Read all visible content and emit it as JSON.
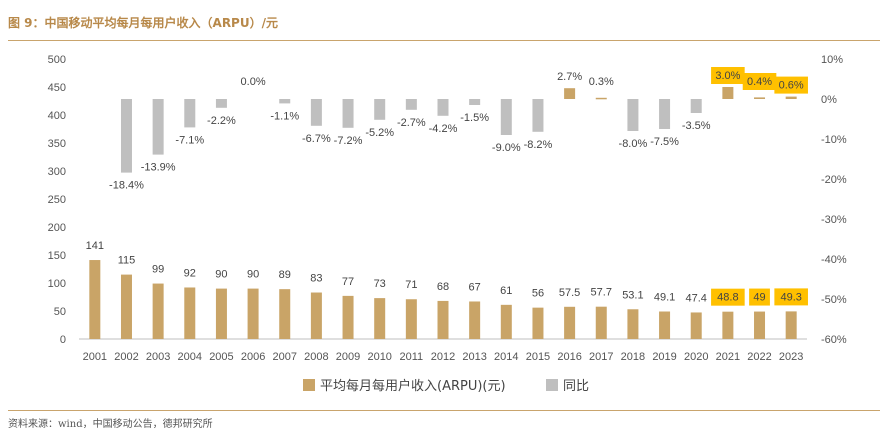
{
  "header": {
    "title": "图 9：中国移动平均每月每用户收入（ARPU）/元"
  },
  "footer": {
    "source": "资料来源：wind，中国移动公告，德邦研究所"
  },
  "colors": {
    "bar": "#c9a467",
    "yoy": "#bfbfbf",
    "highlight": "#ffc000",
    "axis": "#bfbfbf"
  },
  "chart_data": {
    "type": "bar",
    "categories": [
      "2001",
      "2002",
      "2003",
      "2004",
      "2005",
      "2006",
      "2007",
      "2008",
      "2009",
      "2010",
      "2011",
      "2012",
      "2013",
      "2014",
      "2015",
      "2016",
      "2017",
      "2018",
      "2019",
      "2020",
      "2021",
      "2022",
      "2023"
    ],
    "series": [
      {
        "name": "平均每月每用户收入(ARPU)(元)",
        "axis": "left",
        "values": [
          141,
          115,
          99,
          92,
          90,
          90,
          89,
          83,
          77,
          73,
          71,
          68,
          67,
          61,
          56,
          57.5,
          57.7,
          53.1,
          49.1,
          47.4,
          48.8,
          49,
          49.3
        ],
        "labels": [
          "141",
          "115",
          "99",
          "92",
          "90",
          "90",
          "89",
          "83",
          "77",
          "73",
          "71",
          "68",
          "67",
          "61",
          "56",
          "57.5",
          "57.7",
          "53.1",
          "49.1",
          "47.4",
          "48.8",
          "49",
          "49.3"
        ]
      },
      {
        "name": "同比",
        "axis": "right",
        "values": [
          null,
          -18.4,
          -13.9,
          -7.1,
          -2.2,
          0.0,
          -1.1,
          -6.7,
          -7.2,
          -5.2,
          -2.7,
          -4.2,
          -1.5,
          -9.0,
          -8.2,
          2.7,
          0.3,
          -8.0,
          -7.5,
          -3.5,
          3.0,
          0.4,
          0.6
        ],
        "labels": [
          "",
          "-18.4%",
          "-13.9%",
          "-7.1%",
          "-2.2%",
          "0.0%",
          "-1.1%",
          "-6.7%",
          "-7.2%",
          "-5.2%",
          "-2.7%",
          "-4.2%",
          "-1.5%",
          "-9.0%",
          "-8.2%",
          "2.7%",
          "0.3%",
          "-8.0%",
          "-7.5%",
          "-3.5%",
          "3.0%",
          "0.4%",
          "0.6%"
        ]
      }
    ],
    "highlighted_categories": [
      "2021",
      "2022",
      "2023"
    ],
    "left_axis": {
      "range": [
        0,
        500
      ],
      "ticks": [
        "0",
        "50",
        "100",
        "150",
        "200",
        "250",
        "300",
        "350",
        "400",
        "450",
        "500"
      ]
    },
    "right_axis": {
      "range": [
        -60,
        10
      ],
      "ticks": [
        "-60%",
        "-50%",
        "-40%",
        "-30%",
        "-20%",
        "-10%",
        "0%",
        "10%"
      ]
    },
    "legend": {
      "position": "bottom",
      "items": [
        "平均每月每用户收入(ARPU)(元)",
        "同比"
      ]
    },
    "grid": false
  }
}
